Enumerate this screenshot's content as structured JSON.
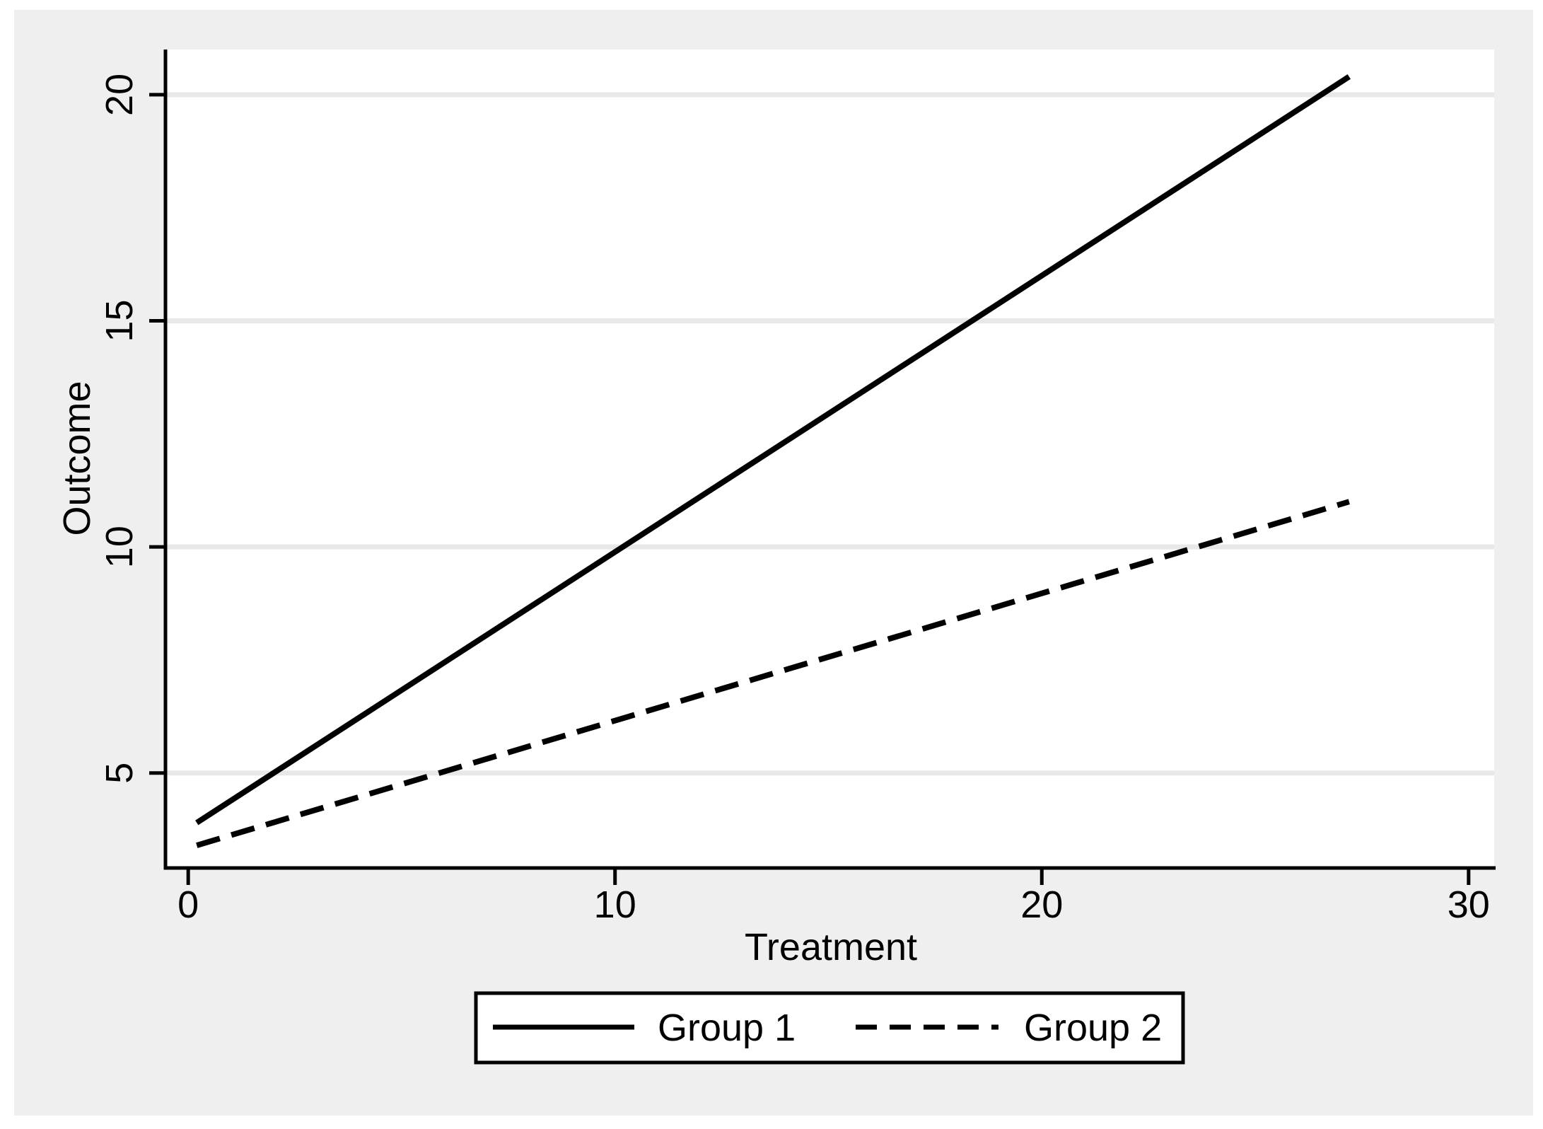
{
  "figure": {
    "background_color": "#ffffff",
    "canvas_color": "#efefef",
    "plot_background_color": "#ffffff",
    "grid_color": "#e8e8e8",
    "axis_color": "#000000",
    "line_color": "#000000"
  },
  "chart_data": {
    "type": "line",
    "title": "",
    "xlabel": "Treatment",
    "ylabel": "Outcome",
    "xlim": [
      -0.5,
      30.6
    ],
    "ylim": [
      2.9,
      21.0
    ],
    "xticks": [
      0,
      10,
      20,
      30
    ],
    "yticks": [
      5,
      10,
      15,
      20
    ],
    "grid": "horizontal-only",
    "legend_position": "bottom-center-boxed",
    "series": [
      {
        "name": "Group 1",
        "style": "solid",
        "points": [
          [
            0.2,
            3.9
          ],
          [
            27.2,
            20.4
          ]
        ]
      },
      {
        "name": "Group 2",
        "style": "dashed",
        "points": [
          [
            0.2,
            3.4
          ],
          [
            27.2,
            11.0
          ]
        ]
      }
    ]
  },
  "legend": {
    "items": [
      {
        "label": "Group 1",
        "style": "solid"
      },
      {
        "label": "Group 2",
        "style": "dashed"
      }
    ]
  }
}
